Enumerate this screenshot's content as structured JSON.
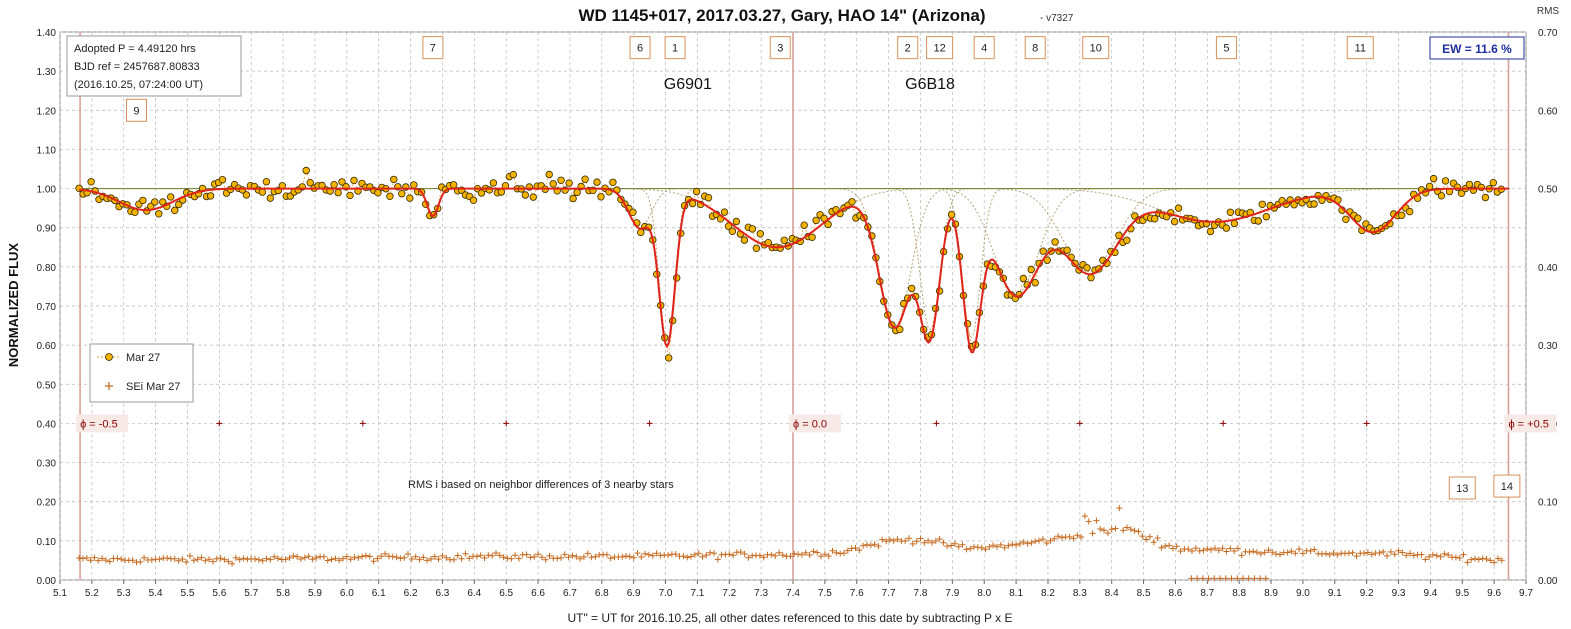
{
  "chart_data": {
    "type": "scatter",
    "title": "WD 1145+017, 2017.03.27, Gary, HAO 14\" (Arizona)",
    "version": "- v7327",
    "ylabel": "NORMALIZED FLUX",
    "y2label": "RMS",
    "xlabel": "UT\" = UT for 2016.10.25, all other dates referenced to this date by subtracting P x E",
    "xlim": [
      5.1,
      9.7
    ],
    "ylim": [
      0.0,
      1.4
    ],
    "y2lim": [
      0.0,
      0.7
    ],
    "x_ticks": [
      "5.1",
      "5.2",
      "5.3",
      "5.4",
      "5.5",
      "5.6",
      "5.7",
      "5.8",
      "5.9",
      "6.0",
      "6.1",
      "6.2",
      "6.3",
      "6.4",
      "6.5",
      "6.6",
      "6.7",
      "6.8",
      "6.9",
      "7.0",
      "7.1",
      "7.2",
      "7.3",
      "7.4",
      "7.5",
      "7.6",
      "7.7",
      "7.8",
      "7.9",
      "8.0",
      "8.1",
      "8.2",
      "8.3",
      "8.4",
      "8.5",
      "8.6",
      "8.7",
      "8.8",
      "8.9",
      "9.0",
      "9.1",
      "9.2",
      "9.3",
      "9.4",
      "9.5",
      "9.6",
      "9.7"
    ],
    "y_ticks": [
      "0.00",
      "0.10",
      "0.20",
      "0.30",
      "0.40",
      "0.50",
      "0.60",
      "0.70",
      "0.80",
      "0.90",
      "1.00",
      "1.10",
      "1.20",
      "1.30",
      "1.40"
    ],
    "y2_ticks": [
      "0.00",
      "0.10",
      "0.20",
      "0.30",
      "0.40",
      "0.50",
      "0.60",
      "0.70"
    ],
    "grid": true,
    "info_box": {
      "line1": "Adopted P = 4.49120  hrs",
      "line2": "BJD ref = 2457687.80833",
      "line3": "(2016.10.25,  07:24:00  UT)"
    },
    "ew_label": "EW = 11.6 %",
    "legend": {
      "placement": "left",
      "entries": [
        "Mar 27",
        "SEi Mar 27"
      ]
    },
    "rms_note": "RMS i based on neighbor differences of 3 nearby stars",
    "group_labels": [
      {
        "text": "G6901",
        "x": 7.07,
        "y": 1.255
      },
      {
        "text": "G6B18",
        "x": 7.83,
        "y": 1.255
      }
    ],
    "phase_markers": [
      {
        "label": "ϕ = -0.5",
        "x": 5.163
      },
      {
        "label": "ϕ = 0.0",
        "x": 7.4
      },
      {
        "label": "ϕ = +0.5",
        "x": 9.645
      }
    ],
    "phase_level": 0.4,
    "dip_labels": [
      {
        "text": "7",
        "x": 6.27,
        "y": 1.36
      },
      {
        "text": "6",
        "x": 6.92,
        "y": 1.36
      },
      {
        "text": "1",
        "x": 7.03,
        "y": 1.36
      },
      {
        "text": "3",
        "x": 7.36,
        "y": 1.36
      },
      {
        "text": "2",
        "x": 7.76,
        "y": 1.36
      },
      {
        "text": "12",
        "x": 7.86,
        "y": 1.36
      },
      {
        "text": "4",
        "x": 8.0,
        "y": 1.36
      },
      {
        "text": "8",
        "x": 8.16,
        "y": 1.36
      },
      {
        "text": "10",
        "x": 8.35,
        "y": 1.36
      },
      {
        "text": "5",
        "x": 8.76,
        "y": 1.36
      },
      {
        "text": "11",
        "x": 9.18,
        "y": 1.36
      },
      {
        "text": "9",
        "x": 5.34,
        "y": 1.2
      },
      {
        "text": "13",
        "x": 9.5,
        "y": 0.235
      },
      {
        "text": "14",
        "x": 9.64,
        "y": 0.24
      }
    ],
    "dips": [
      {
        "t0": 5.37,
        "depth": 0.055,
        "w": 0.12
      },
      {
        "t0": 6.27,
        "depth": 0.07,
        "w": 0.025
      },
      {
        "t0": 6.92,
        "depth": 0.1,
        "w": 0.05
      },
      {
        "t0": 7.005,
        "depth": 0.39,
        "w": 0.035
      },
      {
        "t0": 7.35,
        "depth": 0.15,
        "w": 0.2
      },
      {
        "t0": 7.72,
        "depth": 0.35,
        "w": 0.07
      },
      {
        "t0": 7.83,
        "depth": 0.36,
        "w": 0.045
      },
      {
        "t0": 7.96,
        "depth": 0.38,
        "w": 0.04
      },
      {
        "t0": 8.1,
        "depth": 0.27,
        "w": 0.1
      },
      {
        "t0": 8.33,
        "depth": 0.21,
        "w": 0.12
      },
      {
        "t0": 8.72,
        "depth": 0.085,
        "w": 0.25
      },
      {
        "t0": 9.22,
        "depth": 0.11,
        "w": 0.1
      }
    ],
    "model_dip_curves": [
      {
        "t0": 6.92,
        "depth": 0.1,
        "w": 0.05
      },
      {
        "t0": 7.005,
        "depth": 0.39,
        "w": 0.035
      },
      {
        "t0": 7.35,
        "depth": 0.15,
        "w": 0.2
      },
      {
        "t0": 7.72,
        "depth": 0.35,
        "w": 0.07
      },
      {
        "t0": 7.83,
        "depth": 0.36,
        "w": 0.045
      },
      {
        "t0": 7.96,
        "depth": 0.38,
        "w": 0.04
      },
      {
        "t0": 8.1,
        "depth": 0.27,
        "w": 0.1
      },
      {
        "t0": 8.33,
        "depth": 0.21,
        "w": 0.12
      },
      {
        "t0": 8.72,
        "depth": 0.085,
        "w": 0.25
      }
    ],
    "series": [
      {
        "name": "Mar 27",
        "style": "orange-dot",
        "t_start": 5.16,
        "t_end": 9.63,
        "step": 0.0125,
        "scatter": 0.025
      },
      {
        "name": "SEi Mar 27",
        "style": "plus",
        "t_start": 5.16,
        "t_end": 9.63,
        "step": 0.012
      }
    ],
    "rms_profile": [
      {
        "x": 5.16,
        "y": 0.026
      },
      {
        "x": 5.6,
        "y": 0.026
      },
      {
        "x": 6.4,
        "y": 0.03
      },
      {
        "x": 6.9,
        "y": 0.03
      },
      {
        "x": 7.4,
        "y": 0.033
      },
      {
        "x": 7.55,
        "y": 0.036
      },
      {
        "x": 7.7,
        "y": 0.05
      },
      {
        "x": 7.8,
        "y": 0.052
      },
      {
        "x": 7.95,
        "y": 0.04
      },
      {
        "x": 8.1,
        "y": 0.045
      },
      {
        "x": 8.35,
        "y": 0.06
      },
      {
        "x": 8.45,
        "y": 0.065
      },
      {
        "x": 8.6,
        "y": 0.04
      },
      {
        "x": 9.0,
        "y": 0.035
      },
      {
        "x": 9.3,
        "y": 0.033
      },
      {
        "x": 9.63,
        "y": 0.025
      }
    ],
    "colors": {
      "points": "#f2b400",
      "points_edge": "#3a2a00",
      "fit": "#e0241b",
      "model": "#b5a67a",
      "baseline": "#7a8a3a",
      "rms": "#c56a1e",
      "phase": "#d8a29a",
      "label_box": "#d9905a",
      "ew": "#1f2f9e"
    }
  }
}
